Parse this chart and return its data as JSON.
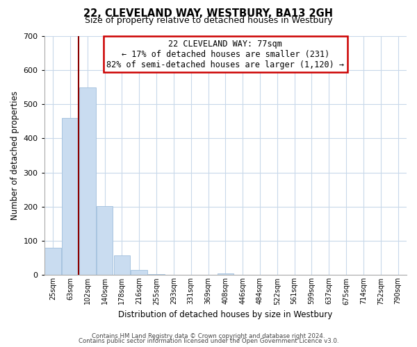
{
  "title": "22, CLEVELAND WAY, WESTBURY, BA13 2GH",
  "subtitle": "Size of property relative to detached houses in Westbury",
  "xlabel": "Distribution of detached houses by size in Westbury",
  "ylabel": "Number of detached properties",
  "bin_labels": [
    "25sqm",
    "63sqm",
    "102sqm",
    "140sqm",
    "178sqm",
    "216sqm",
    "255sqm",
    "293sqm",
    "331sqm",
    "369sqm",
    "408sqm",
    "446sqm",
    "484sqm",
    "522sqm",
    "561sqm",
    "599sqm",
    "637sqm",
    "675sqm",
    "714sqm",
    "752sqm",
    "790sqm"
  ],
  "bar_heights": [
    80,
    460,
    548,
    202,
    57,
    14,
    3,
    0,
    0,
    0,
    5,
    0,
    0,
    0,
    0,
    0,
    0,
    0,
    0,
    0,
    0
  ],
  "bar_color": "#c9dcf0",
  "bar_edge_color": "#a8c4e0",
  "ylim": [
    0,
    700
  ],
  "yticks": [
    0,
    100,
    200,
    300,
    400,
    500,
    600,
    700
  ],
  "property_line_color": "#8b0000",
  "annotation_title": "22 CLEVELAND WAY: 77sqm",
  "annotation_line1": "← 17% of detached houses are smaller (231)",
  "annotation_line2": "82% of semi-detached houses are larger (1,120) →",
  "annotation_box_edge_color": "#cc0000",
  "footer_line1": "Contains HM Land Registry data © Crown copyright and database right 2024.",
  "footer_line2": "Contains public sector information licensed under the Open Government Licence v3.0.",
  "background_color": "#ffffff",
  "grid_color": "#c8d8ea"
}
